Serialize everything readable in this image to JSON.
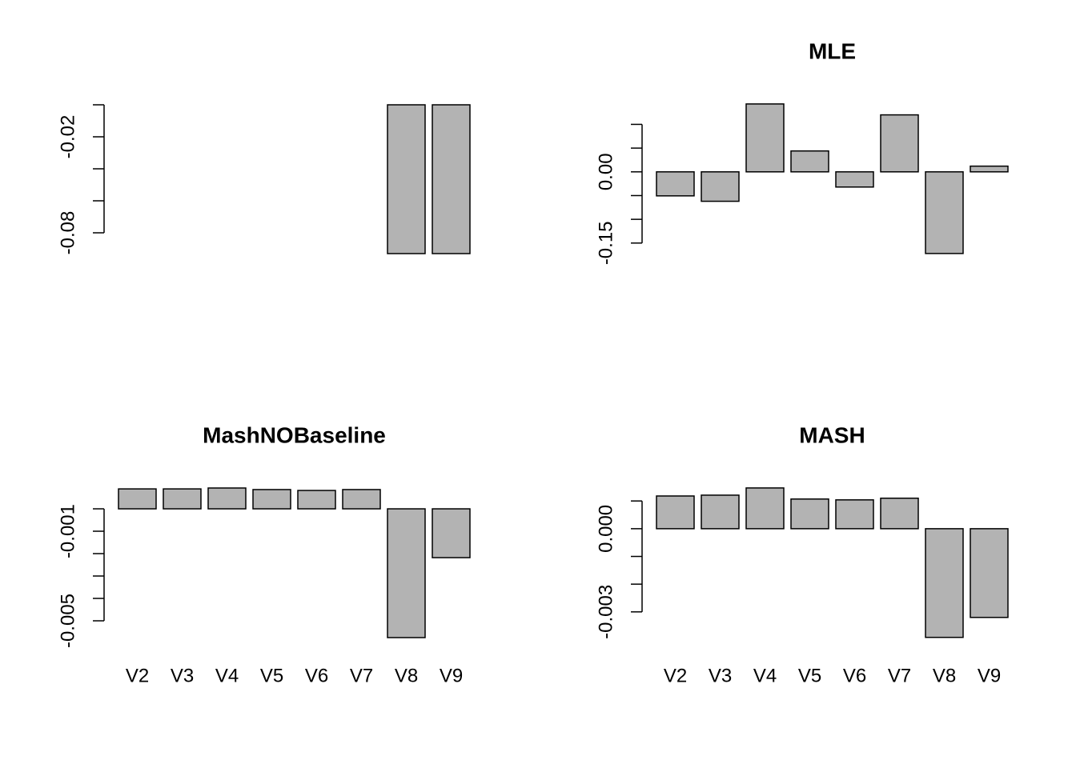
{
  "chart_data": [
    {
      "type": "bar",
      "values": [
        0,
        0,
        0,
        0,
        0,
        0,
        -0.093,
        -0.093
      ],
      "color": "#b3b3b3",
      "ylim": [
        -0.0965,
        0.0035
      ],
      "yticks": [
        -0.02,
        -0.08
      ],
      "yticks_unlabeled": [
        0,
        -0.04,
        -0.06
      ]
    },
    {
      "type": "bar",
      "title": "MLE",
      "values": [
        -0.0506,
        -0.062,
        0.143,
        0.044,
        -0.032,
        0.12,
        -0.172,
        0.012
      ],
      "color": "#b3b3b3",
      "ylim": [
        -0.184,
        0.153
      ],
      "yticks": [
        {
          "value": 0,
          "label": "0.00"
        },
        -0.15
      ],
      "yticks_unlabeled": [
        0.1,
        0.05,
        -0.05,
        -0.1
      ]
    },
    {
      "type": "bar",
      "title": "MashNOBaseline",
      "categories": [
        "V2",
        "V3",
        "V4",
        "V5",
        "V6",
        "V7",
        "V8",
        "V9"
      ],
      "values": [
        0.00089,
        0.00089,
        0.00093,
        0.00086,
        0.00082,
        0.00086,
        -0.00575,
        -0.00218
      ],
      "color": "#b3b3b3",
      "ylim": [
        -0.006,
        0.00118
      ],
      "yticks": [
        -0.001,
        -0.005
      ],
      "yticks_unlabeled": [
        0,
        -0.002,
        -0.003,
        -0.004
      ]
    },
    {
      "type": "bar",
      "title": "MASH",
      "categories": [
        "V2",
        "V3",
        "V4",
        "V5",
        "V6",
        "V7",
        "V8",
        "V9"
      ],
      "values": [
        0.00118,
        0.00121,
        0.00147,
        0.00107,
        0.00104,
        0.0011,
        -0.00392,
        -0.0032
      ],
      "color": "#b3b3b3",
      "ylim": [
        -0.00413,
        0.00167
      ],
      "yticks": [
        {
          "value": 0,
          "label": "0.000"
        },
        -0.003
      ],
      "yticks_unlabeled": [
        0.001,
        -0.001,
        -0.002
      ]
    }
  ]
}
